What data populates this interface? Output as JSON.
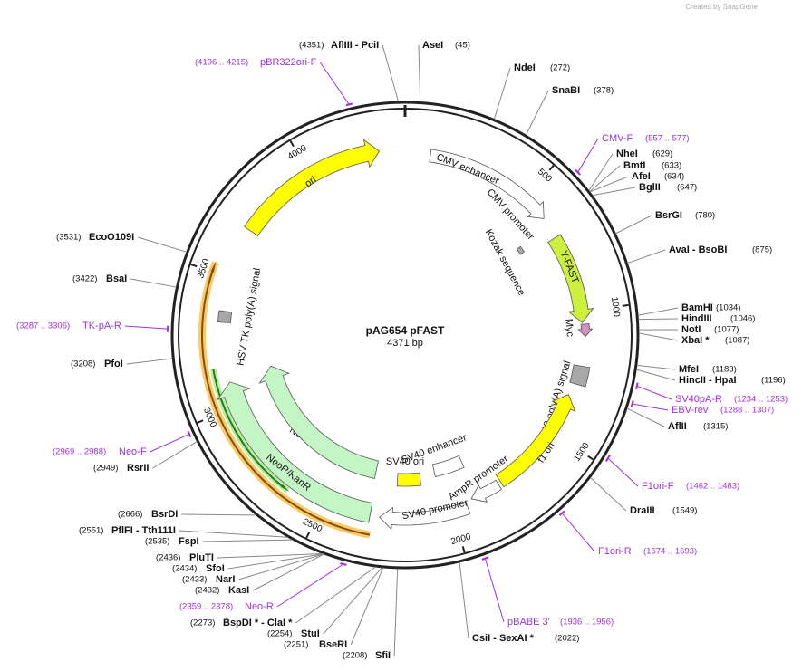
{
  "watermark": "Created by SnapGene",
  "plasmid": {
    "name": "pAG654 pFAST",
    "size": "4371 bp"
  },
  "ruler": {
    "ticks": [
      500,
      1000,
      1500,
      2000,
      2500,
      3000,
      3500,
      4000
    ]
  },
  "features": [
    {
      "label": "ori"
    },
    {
      "label": "CMV enhancer"
    },
    {
      "label": "CMV promoter"
    },
    {
      "label": "Kozak sequence"
    },
    {
      "label": "Y-FAST"
    },
    {
      "label": "Myc"
    },
    {
      "label": "SV40 poly(A) signal"
    },
    {
      "label": "f1 ori"
    },
    {
      "label": "AmpR promoter"
    },
    {
      "label": "SV40 promoter"
    },
    {
      "label": "SV40 ori"
    },
    {
      "label": "SV40 enhancer"
    },
    {
      "label": "NeoR/KanR"
    },
    {
      "label": "NeoR/KanR"
    },
    {
      "label": "HSV TK poly(A) signal"
    }
  ],
  "enzymes": [
    {
      "name": "AflIII  - PciI",
      "position": "(4351)"
    },
    {
      "name": "AseI",
      "position": "(45)"
    },
    {
      "name": "NdeI",
      "position": "(272)"
    },
    {
      "name": "SnaBI",
      "position": "(378)"
    },
    {
      "name": "NheI",
      "position": "(629)"
    },
    {
      "name": "BmtI",
      "position": "(633)"
    },
    {
      "name": "AfeI",
      "position": "(634)"
    },
    {
      "name": "BglII",
      "position": "(647)"
    },
    {
      "name": "BsrGI",
      "position": "(780)"
    },
    {
      "name": "AvaI  - BsoBI",
      "position": "(875)"
    },
    {
      "name": "BamHI",
      "position": "(1034)"
    },
    {
      "name": "HindIII",
      "position": "(1046)"
    },
    {
      "name": "NotI",
      "position": "(1077)"
    },
    {
      "name": "XbaI  *",
      "position": "(1087)"
    },
    {
      "name": "MfeI",
      "position": "(1183)"
    },
    {
      "name": "HincII  - HpaI",
      "position": "(1196)"
    },
    {
      "name": "AflII",
      "position": "(1315)"
    },
    {
      "name": "DraIII",
      "position": "(1549)"
    },
    {
      "name": "CsiI  - SexAI  *",
      "position": "(2022)"
    },
    {
      "name": "SfiI",
      "position": "(2208)"
    },
    {
      "name": "BseRI",
      "position": "(2251)"
    },
    {
      "name": "StuI",
      "position": "(2254)"
    },
    {
      "name": "BspDI  *  - ClaI  *",
      "position": "(2273)"
    },
    {
      "name": "KasI",
      "position": "(2432)"
    },
    {
      "name": "NarI",
      "position": "(2433)"
    },
    {
      "name": "SfoI",
      "position": "(2434)"
    },
    {
      "name": "PluTI",
      "position": "(2436)"
    },
    {
      "name": "FspI",
      "position": "(2535)"
    },
    {
      "name": "PflFI  - Tth111I",
      "position": "(2551)"
    },
    {
      "name": "BsrDI",
      "position": "(2666)"
    },
    {
      "name": "RsrII",
      "position": "(2949)"
    },
    {
      "name": "PfoI",
      "position": "(3208)"
    },
    {
      "name": "BsaI",
      "position": "(3422)"
    },
    {
      "name": "EcoO109I",
      "position": "(3531)"
    }
  ],
  "primers": {
    "color": "#a030e0",
    "items": [
      {
        "name": "CMV-F",
        "position": "(557 .. 577)"
      },
      {
        "name": "SV40pA-R",
        "position": "(1234 .. 1253)"
      },
      {
        "name": "EBV-rev",
        "position": "(1288 .. 1307)"
      },
      {
        "name": "F1ori-F",
        "position": "(1462 .. 1483)"
      },
      {
        "name": "F1ori-R",
        "position": "(1674 .. 1693)"
      },
      {
        "name": "pBABE 3'",
        "position": "(1936 .. 1956)"
      },
      {
        "name": "Neo-R",
        "position": "(2359 .. 2378)"
      },
      {
        "name": "Neo-F",
        "position": "(2969 .. 2988)"
      },
      {
        "name": "TK-pA-R",
        "position": "(3287 .. 3306)"
      },
      {
        "name": "pBR322ori-F",
        "position": "(4196 .. 4215)"
      }
    ]
  }
}
